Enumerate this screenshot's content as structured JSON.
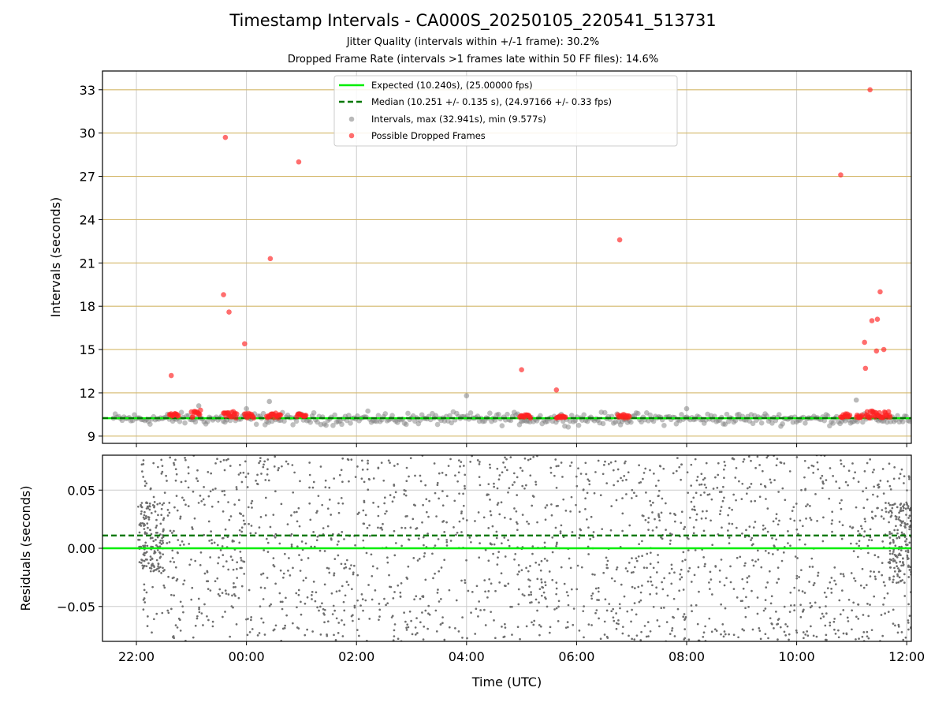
{
  "title": "Timestamp Intervals - CA000S_20250105_220541_513731",
  "subtitle_1": "Jitter Quality (intervals within +/-1 frame): 30.2%",
  "subtitle_2": "Dropped Frame Rate (intervals >1 frames late within 50 FF files): 14.6%",
  "colors": {
    "expected": "#00ee00",
    "median": "#007700",
    "intervals": "#808080",
    "dropped": "#ff2020",
    "residuals": "#6e6e6e",
    "hgrid_top": "#d4b86a",
    "grid": "#cccccc"
  },
  "chart_data": [
    {
      "type": "scatter",
      "ylabel": "Intervals (seconds)",
      "xlabel": "",
      "x_range": [
        "21:23",
        "12:05"
      ],
      "ylim": [
        8.5,
        34.3
      ],
      "yticks": [
        "9",
        "12",
        "15",
        "18",
        "21",
        "24",
        "27",
        "30",
        "33"
      ],
      "grid": true,
      "legend_position": "top-center",
      "legend": [
        "Expected (10.240s), (25.00000 fps)",
        "Median (10.251 +/- 0.135 s), (24.97166 +/- 0.33 fps)",
        "Intervals, max (32.941s), min (9.577s)",
        "Possible Dropped Frames"
      ],
      "expected_interval": 10.24,
      "median_interval": 10.251,
      "interval_band": [
        9.6,
        10.8
      ],
      "interval_outliers": [
        {
          "x": "23:08",
          "y": 11.1
        },
        {
          "x": "00:00",
          "y": 10.9
        },
        {
          "x": "00:25",
          "y": 11.4
        },
        {
          "x": "04:00",
          "y": 11.8
        },
        {
          "x": "08:00",
          "y": 10.9
        },
        {
          "x": "11:05",
          "y": 11.5
        }
      ],
      "dropped_outliers": [
        {
          "x": "22:38",
          "y": 13.2
        },
        {
          "x": "23:35",
          "y": 18.8
        },
        {
          "x": "23:37",
          "y": 29.7
        },
        {
          "x": "23:41",
          "y": 17.6
        },
        {
          "x": "23:58",
          "y": 15.4
        },
        {
          "x": "00:26",
          "y": 21.3
        },
        {
          "x": "00:57",
          "y": 28.0
        },
        {
          "x": "05:00",
          "y": 13.6
        },
        {
          "x": "05:38",
          "y": 12.2
        },
        {
          "x": "06:47",
          "y": 22.6
        },
        {
          "x": "10:48",
          "y": 27.1
        },
        {
          "x": "11:14",
          "y": 15.5
        },
        {
          "x": "11:15",
          "y": 13.7
        },
        {
          "x": "11:20",
          "y": 33.0
        },
        {
          "x": "11:22",
          "y": 17.0
        },
        {
          "x": "11:27",
          "y": 14.9
        },
        {
          "x": "11:28",
          "y": 17.1
        },
        {
          "x": "11:31",
          "y": 19.0
        },
        {
          "x": "11:35",
          "y": 15.0
        }
      ],
      "dropped_clusters": [
        {
          "x": [
            "22:36",
            "22:46"
          ],
          "y": [
            10.25,
            10.6
          ]
        },
        {
          "x": [
            "23:00",
            "23:10"
          ],
          "y": [
            10.3,
            10.85
          ]
        },
        {
          "x": [
            "23:35",
            "23:50"
          ],
          "y": [
            10.25,
            10.7
          ]
        },
        {
          "x": [
            "23:58",
            "00:08"
          ],
          "y": [
            10.25,
            10.6
          ]
        },
        {
          "x": [
            "00:22",
            "00:38"
          ],
          "y": [
            10.25,
            10.6
          ]
        },
        {
          "x": [
            "00:55",
            "01:05"
          ],
          "y": [
            10.25,
            10.55
          ]
        },
        {
          "x": [
            "04:58",
            "05:10"
          ],
          "y": [
            10.25,
            10.5
          ]
        },
        {
          "x": [
            "05:38",
            "05:48"
          ],
          "y": [
            10.25,
            10.45
          ]
        },
        {
          "x": [
            "06:45",
            "06:58"
          ],
          "y": [
            10.25,
            10.5
          ]
        },
        {
          "x": [
            "10:48",
            "10:58"
          ],
          "y": [
            10.25,
            10.55
          ]
        },
        {
          "x": [
            "11:05",
            "11:12"
          ],
          "y": [
            10.25,
            10.5
          ]
        },
        {
          "x": [
            "11:15",
            "11:42"
          ],
          "y": [
            10.25,
            10.75
          ]
        }
      ]
    },
    {
      "type": "scatter",
      "ylabel": "Residuals (seconds)",
      "xlabel": "Time (UTC)",
      "x_range": [
        "21:23",
        "12:05"
      ],
      "ylim": [
        -0.08,
        0.08
      ],
      "yticks": [
        "−0.05",
        "0.00",
        "0.05"
      ],
      "xticks": [
        "22:00",
        "00:00",
        "02:00",
        "04:00",
        "06:00",
        "08:00",
        "10:00",
        "12:00"
      ],
      "grid": true,
      "expected_residual": 0.0,
      "median_residual": 0.011,
      "residual_spread": [
        -0.08,
        0.08
      ],
      "dense_segments": [
        {
          "x": [
            "22:02",
            "22:30"
          ],
          "y": [
            -0.02,
            0.04
          ]
        },
        {
          "x": [
            "11:40",
            "12:05"
          ],
          "y": [
            -0.03,
            0.04
          ]
        }
      ]
    }
  ]
}
